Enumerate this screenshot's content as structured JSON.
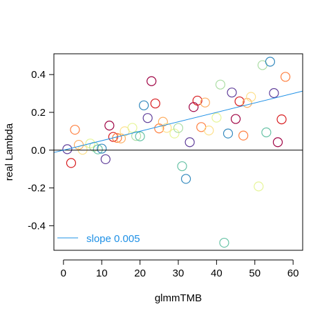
{
  "chart_data": {
    "type": "scatter",
    "xlabel": "glmmTMB",
    "ylabel": "real Lambda",
    "xlim": [
      -2.5,
      62.5
    ],
    "ylim": [
      -0.53,
      0.51
    ],
    "x_ticks": [
      0,
      10,
      20,
      30,
      40,
      50,
      60
    ],
    "y_ticks": [
      -0.4,
      -0.2,
      0.0,
      0.2,
      0.4
    ],
    "x_tick_labels": [
      "0",
      "10",
      "20",
      "30",
      "40",
      "50",
      "60"
    ],
    "y_tick_labels": [
      "-0.4",
      "-0.2",
      "0.0",
      "0.2",
      "0.4"
    ],
    "zero_line": 0,
    "fit_line": {
      "intercept": 0.0,
      "slope": 0.005,
      "color": "#1E90E6"
    },
    "legend": {
      "label": "slope 0.005",
      "position": "bottom-left",
      "color": "#1E90E6"
    },
    "grid": false,
    "points": [
      {
        "x": 1,
        "y": 0.005,
        "color": "#5E3C99"
      },
      {
        "x": 2,
        "y": -0.068,
        "color": "#D7191C"
      },
      {
        "x": 3,
        "y": 0.108,
        "color": "#FF7F3F"
      },
      {
        "x": 4,
        "y": 0.028,
        "color": "#FDAE61"
      },
      {
        "x": 5,
        "y": 0.002,
        "color": "#FEE08B"
      },
      {
        "x": 7,
        "y": 0.035,
        "color": "#E6F598"
      },
      {
        "x": 8,
        "y": 0.018,
        "color": "#ABDDA4"
      },
      {
        "x": 9,
        "y": 0.004,
        "color": "#66C2A5"
      },
      {
        "x": 10,
        "y": 0.008,
        "color": "#3288BD"
      },
      {
        "x": 11,
        "y": -0.048,
        "color": "#5E3C99"
      },
      {
        "x": 12,
        "y": 0.13,
        "color": "#9E0142"
      },
      {
        "x": 13,
        "y": 0.07,
        "color": "#D7191C"
      },
      {
        "x": 14,
        "y": 0.065,
        "color": "#FF7F3F"
      },
      {
        "x": 15,
        "y": 0.062,
        "color": "#FDAE61"
      },
      {
        "x": 16,
        "y": 0.1,
        "color": "#FEE08B"
      },
      {
        "x": 18,
        "y": 0.118,
        "color": "#E6F598"
      },
      {
        "x": 19,
        "y": 0.075,
        "color": "#ABDDA4"
      },
      {
        "x": 20,
        "y": 0.073,
        "color": "#66C2A5"
      },
      {
        "x": 21,
        "y": 0.237,
        "color": "#3288BD"
      },
      {
        "x": 22,
        "y": 0.17,
        "color": "#5E3C99"
      },
      {
        "x": 23,
        "y": 0.365,
        "color": "#9E0142"
      },
      {
        "x": 24,
        "y": 0.247,
        "color": "#D7191C"
      },
      {
        "x": 25,
        "y": 0.115,
        "color": "#FF7F3F"
      },
      {
        "x": 26,
        "y": 0.15,
        "color": "#FDAE61"
      },
      {
        "x": 27,
        "y": 0.118,
        "color": "#FEE08B"
      },
      {
        "x": 29,
        "y": 0.088,
        "color": "#E6F598"
      },
      {
        "x": 30,
        "y": 0.117,
        "color": "#ABDDA4"
      },
      {
        "x": 31,
        "y": -0.085,
        "color": "#66C2A5"
      },
      {
        "x": 32,
        "y": -0.152,
        "color": "#3288BD"
      },
      {
        "x": 33,
        "y": 0.042,
        "color": "#5E3C99"
      },
      {
        "x": 34,
        "y": 0.228,
        "color": "#9E0142"
      },
      {
        "x": 35,
        "y": 0.262,
        "color": "#D7191C"
      },
      {
        "x": 36,
        "y": 0.122,
        "color": "#FF7F3F"
      },
      {
        "x": 37,
        "y": 0.252,
        "color": "#FDAE61"
      },
      {
        "x": 38,
        "y": 0.104,
        "color": "#FEE08B"
      },
      {
        "x": 40,
        "y": 0.172,
        "color": "#E6F598"
      },
      {
        "x": 41,
        "y": 0.347,
        "color": "#ABDDA4"
      },
      {
        "x": 42,
        "y": -0.49,
        "color": "#66C2A5"
      },
      {
        "x": 43,
        "y": 0.088,
        "color": "#3288BD"
      },
      {
        "x": 44,
        "y": 0.305,
        "color": "#5E3C99"
      },
      {
        "x": 45,
        "y": 0.165,
        "color": "#9E0142"
      },
      {
        "x": 46,
        "y": 0.258,
        "color": "#D7191C"
      },
      {
        "x": 47,
        "y": 0.077,
        "color": "#FF7F3F"
      },
      {
        "x": 48,
        "y": 0.25,
        "color": "#FDAE61"
      },
      {
        "x": 49,
        "y": 0.282,
        "color": "#FEE08B"
      },
      {
        "x": 51,
        "y": -0.192,
        "color": "#E6F598"
      },
      {
        "x": 52,
        "y": 0.45,
        "color": "#ABDDA4"
      },
      {
        "x": 53,
        "y": 0.094,
        "color": "#66C2A5"
      },
      {
        "x": 54,
        "y": 0.468,
        "color": "#3288BD"
      },
      {
        "x": 55,
        "y": 0.302,
        "color": "#5E3C99"
      },
      {
        "x": 56,
        "y": 0.042,
        "color": "#9E0142"
      },
      {
        "x": 57,
        "y": 0.163,
        "color": "#D7191C"
      },
      {
        "x": 58,
        "y": 0.388,
        "color": "#FF7F3F"
      }
    ]
  }
}
